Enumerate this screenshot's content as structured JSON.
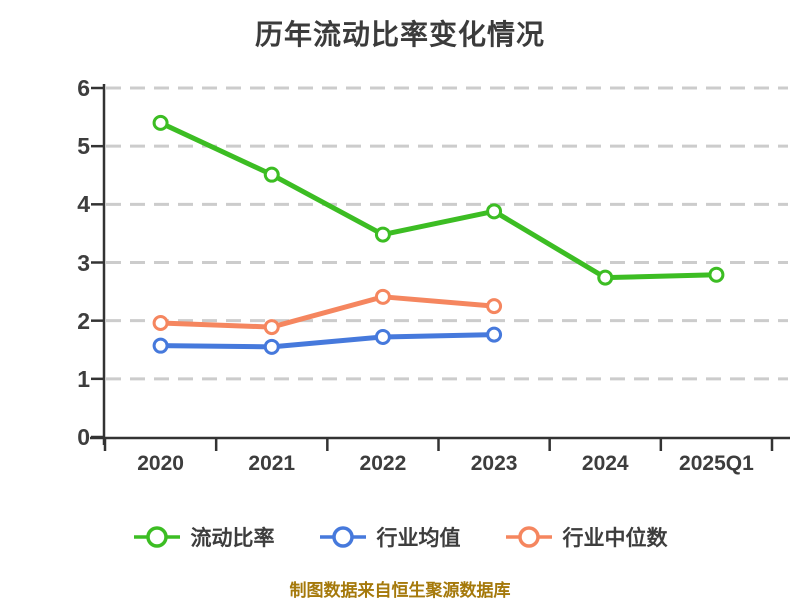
{
  "chart_data": {
    "type": "line",
    "title": "历年流动比率变化情况",
    "source_note": "制图数据来自恒生聚源数据库",
    "categories": [
      "2020",
      "2021",
      "2022",
      "2023",
      "2024",
      "2025Q1"
    ],
    "series": [
      {
        "name": "流动比率",
        "color": "#3cbd23",
        "values": [
          5.4,
          4.51,
          3.48,
          3.88,
          2.74,
          2.79
        ]
      },
      {
        "name": "行业均值",
        "color": "#4679dc",
        "values": [
          1.57,
          1.55,
          1.72,
          1.76,
          null,
          null
        ]
      },
      {
        "name": "行业中位数",
        "color": "#f5865f",
        "values": [
          1.96,
          1.89,
          2.41,
          2.25,
          null,
          null
        ]
      }
    ],
    "ylim": [
      0,
      6
    ],
    "yticks": [
      0,
      1,
      2,
      3,
      4,
      5,
      6
    ],
    "grid": "horizontal-dashed",
    "legend_position": "bottom",
    "marker": "circle-open-white",
    "colors": {
      "grid": "#cccccc",
      "axis": "#333333",
      "tick_label": "#3d3d3d",
      "title": "#3b3b3b",
      "source_note": "#a5790b",
      "marker_fill": "#ffffff"
    }
  }
}
